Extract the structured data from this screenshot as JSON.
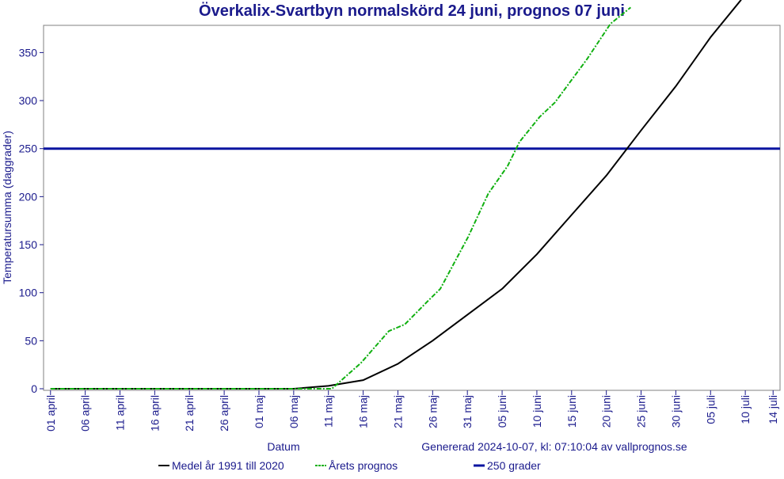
{
  "chart_data": {
    "type": "line",
    "title": "Överkalix-Svartbyn normalskörd 24 juni, prognos 07 juni",
    "x_label": "Datum",
    "y_label": "Temperatursumma (daggrader)",
    "annotation": "Genererad 2024-10-07, kl: 07:10:04 av vallprognos.se",
    "xlim": [
      -1,
      105
    ],
    "ylim": [
      0,
      380
    ],
    "yticks": [
      0,
      50,
      100,
      150,
      200,
      250,
      300,
      350
    ],
    "xticks": [
      {
        "value": 0,
        "label": "01 april"
      },
      {
        "value": 5,
        "label": "06 april"
      },
      {
        "value": 10,
        "label": "11 april"
      },
      {
        "value": 15,
        "label": "16 april"
      },
      {
        "value": 20,
        "label": "21 april"
      },
      {
        "value": 25,
        "label": "26 april"
      },
      {
        "value": 30,
        "label": "01 maj"
      },
      {
        "value": 35,
        "label": "06 maj"
      },
      {
        "value": 40,
        "label": "11 maj"
      },
      {
        "value": 45,
        "label": "16 maj"
      },
      {
        "value": 50,
        "label": "21 maj"
      },
      {
        "value": 55,
        "label": "26 maj"
      },
      {
        "value": 60,
        "label": "31 maj"
      },
      {
        "value": 65,
        "label": "05 juni"
      },
      {
        "value": 70,
        "label": "10 juni"
      },
      {
        "value": 75,
        "label": "15 juni"
      },
      {
        "value": 80,
        "label": "20 juni"
      },
      {
        "value": 85,
        "label": "25 juni"
      },
      {
        "value": 90,
        "label": "30 juni"
      },
      {
        "value": 95,
        "label": "05 juli"
      },
      {
        "value": 100,
        "label": "10 juli"
      },
      {
        "value": 104,
        "label": "14 juli"
      }
    ],
    "series": [
      {
        "name": "Medel år 1991 till 2020",
        "color": "#000000",
        "dash": "",
        "x": [
          0,
          35,
          40,
          45,
          50,
          55,
          60,
          65,
          70,
          75,
          80,
          85,
          90,
          95,
          99.4
        ],
        "values": [
          0,
          0,
          3,
          9,
          26,
          50,
          77,
          104,
          140,
          181,
          222,
          269,
          315,
          366,
          405
        ]
      },
      {
        "name": "Årets prognos",
        "color": "#10b010",
        "dash": "6 2 2 2",
        "x": [
          0,
          40.5,
          44.7,
          48.7,
          51,
          54.4,
          56.1,
          60.1,
          63,
          65.8,
          67.5,
          70.4,
          72.6,
          77.2,
          80.6,
          83.5
        ],
        "values": [
          0,
          0,
          27,
          60,
          67,
          92,
          104,
          158,
          203,
          232,
          257,
          283,
          298,
          343,
          380,
          397
        ]
      }
    ],
    "reference_lines": [
      {
        "name": "250 grader",
        "value": 250,
        "color": "#0a14a0"
      }
    ]
  }
}
